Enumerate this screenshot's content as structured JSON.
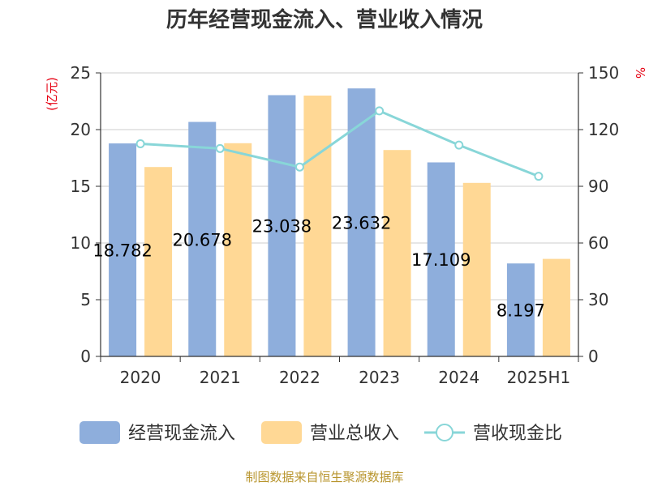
{
  "chart_data": {
    "type": "bar",
    "title": "历年经营现金流入、营业收入情况",
    "categories": [
      "2020",
      "2021",
      "2022",
      "2023",
      "2024",
      "2025H1"
    ],
    "series": [
      {
        "name": "经营现金流入",
        "type": "bar",
        "axis": "left",
        "color": "#8eaedc",
        "values": [
          18.782,
          20.678,
          23.038,
          23.632,
          17.109,
          8.197
        ],
        "labels": [
          "18.782",
          "20.678",
          "23.038",
          "23.632",
          "17.109",
          "8.197"
        ]
      },
      {
        "name": "营业总收入",
        "type": "bar",
        "axis": "left",
        "color": "#ffd895",
        "values": [
          16.7,
          18.8,
          23.0,
          18.2,
          15.3,
          8.6
        ]
      },
      {
        "name": "营收现金比",
        "type": "line",
        "axis": "right",
        "color": "#88d6d8",
        "values": [
          112.5,
          110.0,
          100.2,
          129.9,
          111.8,
          95.3
        ]
      }
    ],
    "left_axis": {
      "unit": "(亿元)",
      "ylim": [
        0,
        25
      ],
      "ticks": [
        "0",
        "5",
        "10",
        "15",
        "20",
        "25"
      ]
    },
    "right_axis": {
      "unit": "%",
      "ylim": [
        0,
        150
      ],
      "ticks": [
        "0",
        "30",
        "60",
        "90",
        "120",
        "150"
      ]
    },
    "grid": true,
    "legend": "bottom"
  },
  "source": "制图数据来自恒生聚源数据库"
}
